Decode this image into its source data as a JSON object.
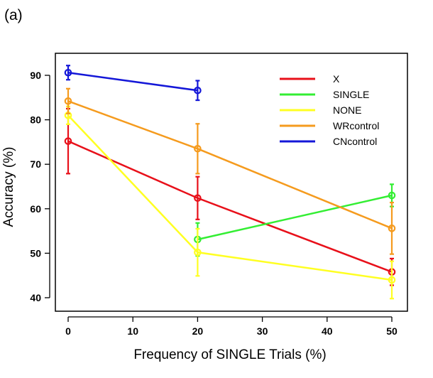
{
  "chart_data": {
    "type": "line",
    "panel_label": "(a)",
    "title": "",
    "xlabel": "Frequency of SINGLE Trials (%)",
    "ylabel": "Accuracy (%)",
    "xlim": [
      0,
      50
    ],
    "ylim": [
      40,
      90
    ],
    "xticks": [
      0,
      10,
      20,
      30,
      40,
      50
    ],
    "yticks": [
      40,
      50,
      60,
      70,
      80,
      90
    ],
    "grid": false,
    "legend_position": "top-right",
    "series": [
      {
        "name": "X",
        "color": "#e8101a",
        "x": [
          0,
          20,
          50
        ],
        "y": [
          75.2,
          62.4,
          45.8
        ],
        "err": [
          7.3,
          4.8,
          3.0
        ]
      },
      {
        "name": "SINGLE",
        "color": "#33ee33",
        "x": [
          20,
          50
        ],
        "y": [
          53.1,
          63.0
        ],
        "err": [
          3.7,
          2.5
        ]
      },
      {
        "name": "NONE",
        "color": "#ffff22",
        "x": [
          0,
          20,
          50
        ],
        "y": [
          81.0,
          50.2,
          44.0
        ],
        "err": [
          2.0,
          5.3,
          4.2
        ]
      },
      {
        "name": "WRcontrol",
        "color": "#f59b1e",
        "x": [
          0,
          20,
          50
        ],
        "y": [
          84.2,
          73.5,
          55.6
        ],
        "err": [
          2.8,
          5.6,
          5.8
        ]
      },
      {
        "name": "CNcontrol",
        "color": "#1417d8",
        "x": [
          0,
          20
        ],
        "y": [
          90.6,
          86.6
        ],
        "err": [
          1.6,
          2.2
        ]
      }
    ]
  }
}
